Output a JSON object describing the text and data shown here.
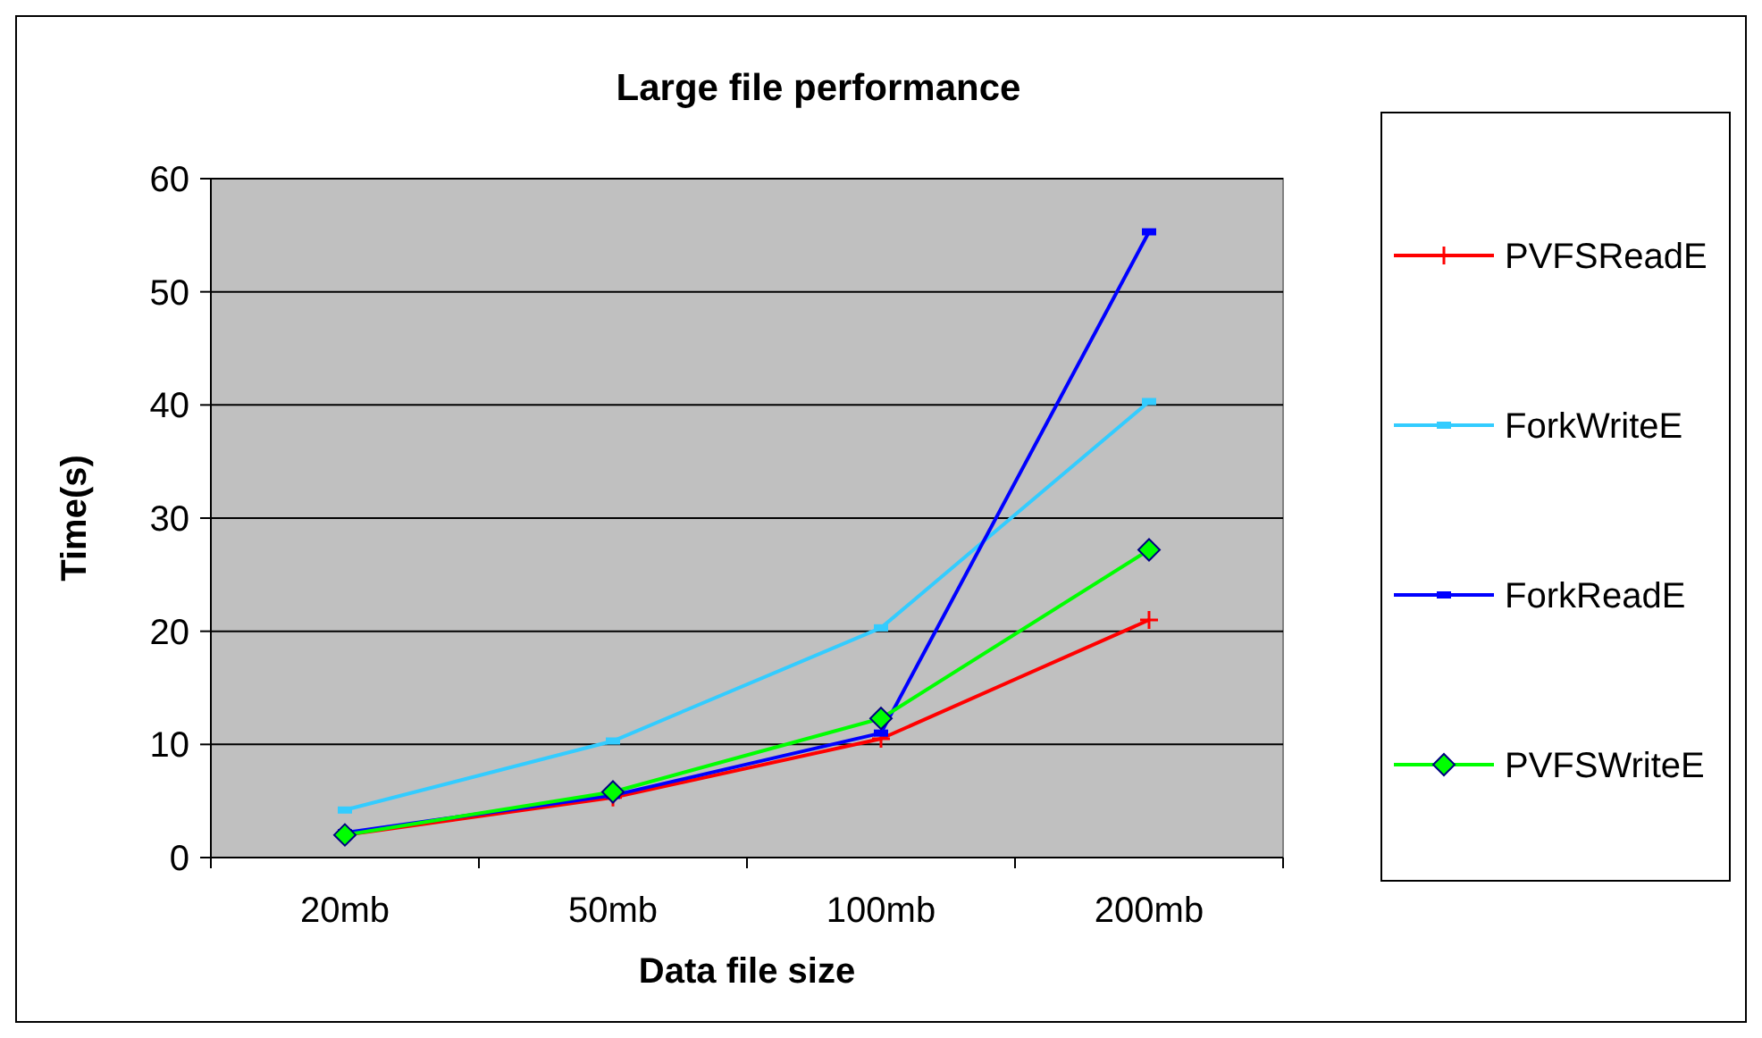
{
  "chart_data": {
    "type": "line",
    "title": "Large file performance",
    "xlabel": "Data file size",
    "ylabel": "Time(s)",
    "categories": [
      "20mb",
      "50mb",
      "100mb",
      "200mb"
    ],
    "series": [
      {
        "name": "PVFSReadE",
        "color": "#ff0000",
        "marker": "cross",
        "values": [
          2,
          5.3,
          10.5,
          21
        ]
      },
      {
        "name": "ForkWriteE",
        "color": "#33ccff",
        "marker": "square",
        "values": [
          4.2,
          10.3,
          20.3,
          40.3
        ]
      },
      {
        "name": "ForkReadE",
        "color": "#0000ff",
        "marker": "square",
        "values": [
          2.2,
          5.5,
          11,
          55.3
        ]
      },
      {
        "name": "PVFSWriteE",
        "color": "#00ff00",
        "marker": "diamond",
        "values": [
          2,
          5.8,
          12.3,
          27.2
        ]
      }
    ],
    "ylim": [
      0,
      60
    ],
    "yticks": [
      0,
      10,
      20,
      30,
      40,
      50,
      60
    ],
    "grid": "y",
    "legend": "right"
  }
}
